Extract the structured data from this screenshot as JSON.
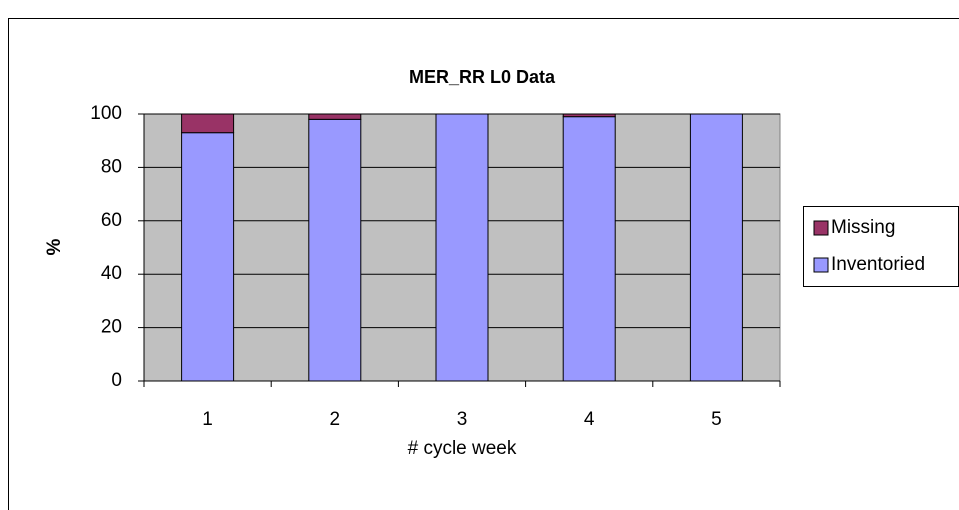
{
  "chart_data": {
    "type": "stacked_bar",
    "title": "MER_RR L0 Data",
    "x_label": "# cycle week",
    "y_label": "%",
    "categories": [
      "1",
      "2",
      "3",
      "4",
      "5"
    ],
    "series": [
      {
        "name": "Missing",
        "color": "#993366",
        "values": [
          7,
          2,
          0,
          1,
          0
        ]
      },
      {
        "name": "Inventoried",
        "color": "#9999ff",
        "values": [
          93,
          98,
          100,
          99,
          100
        ]
      }
    ],
    "ylim": [
      0,
      100
    ],
    "yticks": [
      0,
      20,
      40,
      60,
      80,
      100
    ],
    "grid": true,
    "legend": "right"
  }
}
